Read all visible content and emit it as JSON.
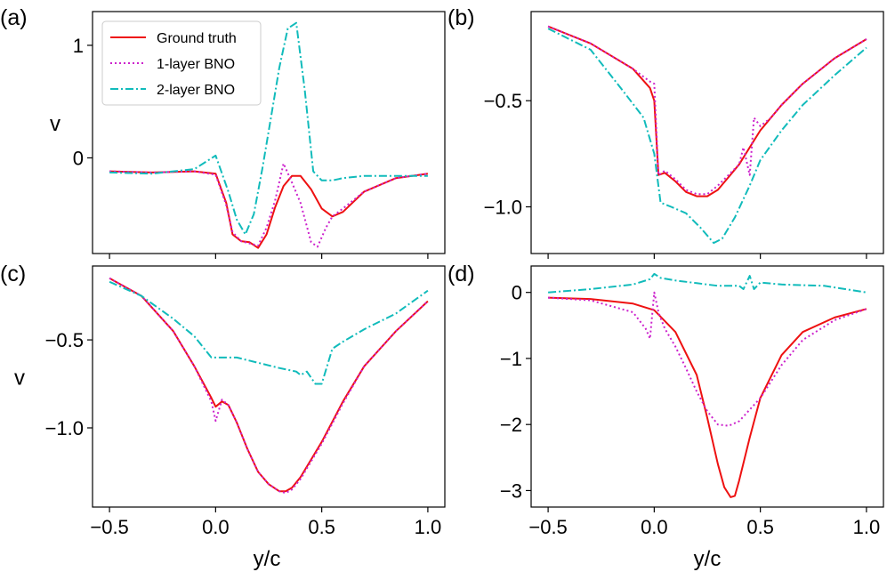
{
  "chart_data": [
    {
      "panel": "(a)",
      "type": "line",
      "xlabel": "",
      "ylabel": "v",
      "xlim": [
        -0.58,
        1.08
      ],
      "ylim": [
        -0.85,
        1.3
      ],
      "xticks": [
        -0.5,
        0.0,
        0.5,
        1.0
      ],
      "xticklabels": [
        "",
        "",
        "",
        ""
      ],
      "yticks": [
        0,
        1
      ],
      "yticklabels": [
        "0",
        "1"
      ],
      "legend": {
        "position": "top-left",
        "entries": [
          "Ground truth",
          "1-layer BNO",
          "2-layer BNO"
        ]
      },
      "series": [
        {
          "name": "Ground truth",
          "color": "#ee1111",
          "style": "solid",
          "x": [
            -0.5,
            -0.3,
            -0.1,
            0.0,
            0.05,
            0.08,
            0.12,
            0.16,
            0.2,
            0.24,
            0.28,
            0.32,
            0.36,
            0.4,
            0.45,
            0.5,
            0.55,
            0.6,
            0.7,
            0.85,
            1.0
          ],
          "y": [
            -0.12,
            -0.13,
            -0.12,
            -0.14,
            -0.4,
            -0.68,
            -0.74,
            -0.75,
            -0.8,
            -0.68,
            -0.44,
            -0.25,
            -0.16,
            -0.16,
            -0.28,
            -0.45,
            -0.52,
            -0.48,
            -0.3,
            -0.18,
            -0.14
          ]
        },
        {
          "name": "1-layer BNO",
          "color": "#cc22cc",
          "style": "dotted",
          "x": [
            -0.5,
            -0.3,
            -0.1,
            0.0,
            0.05,
            0.08,
            0.12,
            0.16,
            0.2,
            0.24,
            0.28,
            0.32,
            0.36,
            0.4,
            0.45,
            0.48,
            0.52,
            0.55,
            0.6,
            0.7,
            0.85,
            1.0
          ],
          "y": [
            -0.12,
            -0.13,
            -0.12,
            -0.15,
            -0.42,
            -0.66,
            -0.74,
            -0.76,
            -0.78,
            -0.62,
            -0.38,
            -0.05,
            -0.22,
            -0.4,
            -0.75,
            -0.79,
            -0.62,
            -0.52,
            -0.45,
            -0.3,
            -0.18,
            -0.14
          ]
        },
        {
          "name": "2-layer BNO",
          "color": "#11bbbb",
          "style": "dashdot",
          "x": [
            -0.5,
            -0.3,
            -0.1,
            0.0,
            0.06,
            0.1,
            0.14,
            0.18,
            0.22,
            0.26,
            0.3,
            0.34,
            0.38,
            0.42,
            0.46,
            0.5,
            0.55,
            0.6,
            0.7,
            0.85,
            1.0
          ],
          "y": [
            -0.13,
            -0.14,
            -0.1,
            0.02,
            -0.3,
            -0.55,
            -0.68,
            -0.5,
            -0.1,
            0.35,
            0.8,
            1.15,
            1.2,
            0.6,
            -0.12,
            -0.2,
            -0.2,
            -0.18,
            -0.16,
            -0.16,
            -0.16
          ]
        }
      ]
    },
    {
      "panel": "(b)",
      "type": "line",
      "xlabel": "",
      "ylabel": "",
      "xlim": [
        -0.58,
        1.08
      ],
      "ylim": [
        -1.22,
        -0.08
      ],
      "xticks": [
        -0.5,
        0.0,
        0.5,
        1.0
      ],
      "xticklabels": [
        "",
        "",
        "",
        ""
      ],
      "yticks": [
        -0.5,
        -1.0
      ],
      "yticklabels": [
        "−0.5",
        "−1.0"
      ],
      "series": [
        {
          "name": "Ground truth",
          "color": "#ee1111",
          "style": "solid",
          "x": [
            -0.5,
            -0.3,
            -0.1,
            -0.02,
            0.0,
            0.02,
            0.05,
            0.1,
            0.15,
            0.2,
            0.25,
            0.3,
            0.35,
            0.4,
            0.45,
            0.5,
            0.6,
            0.7,
            0.85,
            1.0
          ],
          "y": [
            -0.15,
            -0.23,
            -0.35,
            -0.44,
            -0.5,
            -0.85,
            -0.84,
            -0.88,
            -0.93,
            -0.95,
            -0.95,
            -0.92,
            -0.86,
            -0.8,
            -0.72,
            -0.64,
            -0.52,
            -0.42,
            -0.3,
            -0.21
          ]
        },
        {
          "name": "1-layer BNO",
          "color": "#cc22cc",
          "style": "dotted",
          "x": [
            -0.5,
            -0.3,
            -0.1,
            -0.02,
            0.0,
            0.02,
            0.05,
            0.1,
            0.15,
            0.2,
            0.25,
            0.3,
            0.35,
            0.4,
            0.42,
            0.45,
            0.47,
            0.5,
            0.55,
            0.6,
            0.7,
            0.85,
            1.0
          ],
          "y": [
            -0.15,
            -0.23,
            -0.35,
            -0.41,
            -0.42,
            -0.85,
            -0.83,
            -0.87,
            -0.92,
            -0.94,
            -0.94,
            -0.9,
            -0.85,
            -0.8,
            -0.72,
            -0.85,
            -0.58,
            -0.62,
            -0.58,
            -0.52,
            -0.42,
            -0.3,
            -0.21
          ]
        },
        {
          "name": "2-layer BNO",
          "color": "#11bbbb",
          "style": "dashdot",
          "x": [
            -0.5,
            -0.3,
            -0.15,
            -0.05,
            0.0,
            0.03,
            0.08,
            0.15,
            0.22,
            0.28,
            0.32,
            0.38,
            0.45,
            0.5,
            0.6,
            0.7,
            0.85,
            1.0
          ],
          "y": [
            -0.16,
            -0.26,
            -0.45,
            -0.58,
            -0.75,
            -0.98,
            -1.0,
            -1.03,
            -1.1,
            -1.17,
            -1.15,
            -1.05,
            -0.9,
            -0.78,
            -0.64,
            -0.52,
            -0.38,
            -0.25
          ]
        }
      ]
    },
    {
      "panel": "(c)",
      "type": "line",
      "xlabel": "y/c",
      "ylabel": "v",
      "xlim": [
        -0.58,
        1.08
      ],
      "ylim": [
        -1.45,
        -0.08
      ],
      "xticks": [
        -0.5,
        0.0,
        0.5,
        1.0
      ],
      "xticklabels": [
        "−0.5",
        "0.0",
        "0.5",
        "1.0"
      ],
      "yticks": [
        -0.5,
        -1.0
      ],
      "yticklabels": [
        "−0.5",
        "−1.0"
      ],
      "series": [
        {
          "name": "Ground truth",
          "color": "#ee1111",
          "style": "solid",
          "x": [
            -0.5,
            -0.35,
            -0.2,
            -0.1,
            -0.02,
            0.0,
            0.03,
            0.06,
            0.1,
            0.15,
            0.2,
            0.25,
            0.3,
            0.33,
            0.36,
            0.4,
            0.5,
            0.6,
            0.7,
            0.85,
            1.0
          ],
          "y": [
            -0.15,
            -0.25,
            -0.45,
            -0.65,
            -0.83,
            -0.88,
            -0.85,
            -0.87,
            -0.97,
            -1.12,
            -1.25,
            -1.32,
            -1.36,
            -1.36,
            -1.34,
            -1.28,
            -1.08,
            -0.85,
            -0.65,
            -0.45,
            -0.28
          ]
        },
        {
          "name": "1-layer BNO",
          "color": "#cc22cc",
          "style": "dotted",
          "x": [
            -0.5,
            -0.35,
            -0.2,
            -0.1,
            -0.02,
            0.0,
            0.03,
            0.06,
            0.1,
            0.15,
            0.2,
            0.25,
            0.3,
            0.33,
            0.36,
            0.4,
            0.5,
            0.6,
            0.7,
            0.85,
            1.0
          ],
          "y": [
            -0.15,
            -0.25,
            -0.45,
            -0.65,
            -0.85,
            -0.96,
            -0.84,
            -0.87,
            -0.97,
            -1.12,
            -1.25,
            -1.32,
            -1.36,
            -1.37,
            -1.35,
            -1.29,
            -1.09,
            -0.86,
            -0.65,
            -0.45,
            -0.28
          ]
        },
        {
          "name": "2-layer BNO",
          "color": "#11bbbb",
          "style": "dashdot",
          "x": [
            -0.5,
            -0.35,
            -0.2,
            -0.1,
            -0.02,
            0.03,
            0.1,
            0.2,
            0.3,
            0.38,
            0.4,
            0.43,
            0.47,
            0.5,
            0.55,
            0.6,
            0.7,
            0.85,
            1.0
          ],
          "y": [
            -0.17,
            -0.25,
            -0.38,
            -0.48,
            -0.6,
            -0.6,
            -0.6,
            -0.63,
            -0.66,
            -0.68,
            -0.7,
            -0.68,
            -0.75,
            -0.75,
            -0.55,
            -0.51,
            -0.44,
            -0.35,
            -0.22
          ]
        }
      ]
    },
    {
      "panel": "(d)",
      "type": "line",
      "xlabel": "y/c",
      "ylabel": "",
      "xlim": [
        -0.58,
        1.08
      ],
      "ylim": [
        -3.25,
        0.4
      ],
      "xticks": [
        -0.5,
        0.0,
        0.5,
        1.0
      ],
      "xticklabels": [
        "−0.5",
        "0.0",
        "0.5",
        "1.0"
      ],
      "yticks": [
        0,
        -1,
        -2,
        -3
      ],
      "yticklabels": [
        "0",
        "−1",
        "−2",
        "−3"
      ],
      "series": [
        {
          "name": "Ground truth",
          "color": "#ee1111",
          "style": "solid",
          "x": [
            -0.5,
            -0.3,
            -0.1,
            0.0,
            0.1,
            0.2,
            0.25,
            0.3,
            0.33,
            0.36,
            0.38,
            0.4,
            0.45,
            0.5,
            0.6,
            0.7,
            0.85,
            1.0
          ],
          "y": [
            -0.08,
            -0.1,
            -0.17,
            -0.27,
            -0.6,
            -1.25,
            -1.9,
            -2.6,
            -2.95,
            -3.1,
            -3.08,
            -2.85,
            -2.2,
            -1.6,
            -0.95,
            -0.6,
            -0.38,
            -0.25
          ]
        },
        {
          "name": "1-layer BNO",
          "color": "#cc22cc",
          "style": "dotted",
          "x": [
            -0.5,
            -0.3,
            -0.1,
            -0.04,
            -0.02,
            0.0,
            0.02,
            0.05,
            0.1,
            0.15,
            0.2,
            0.25,
            0.3,
            0.35,
            0.4,
            0.5,
            0.6,
            0.7,
            0.85,
            1.0
          ],
          "y": [
            -0.08,
            -0.12,
            -0.3,
            -0.55,
            -0.7,
            0.0,
            -0.3,
            -0.55,
            -0.82,
            -1.15,
            -1.5,
            -1.8,
            -2.0,
            -2.02,
            -1.95,
            -1.6,
            -1.1,
            -0.72,
            -0.42,
            -0.25
          ]
        },
        {
          "name": "2-layer BNO",
          "color": "#11bbbb",
          "style": "dashdot",
          "x": [
            -0.5,
            -0.3,
            -0.1,
            -0.02,
            0.0,
            0.03,
            0.1,
            0.2,
            0.3,
            0.4,
            0.42,
            0.45,
            0.47,
            0.5,
            0.6,
            0.8,
            1.0
          ],
          "y": [
            0.0,
            0.05,
            0.12,
            0.2,
            0.28,
            0.22,
            0.18,
            0.14,
            0.1,
            0.1,
            0.05,
            0.25,
            0.05,
            0.15,
            0.12,
            0.1,
            0.0
          ]
        }
      ]
    }
  ]
}
